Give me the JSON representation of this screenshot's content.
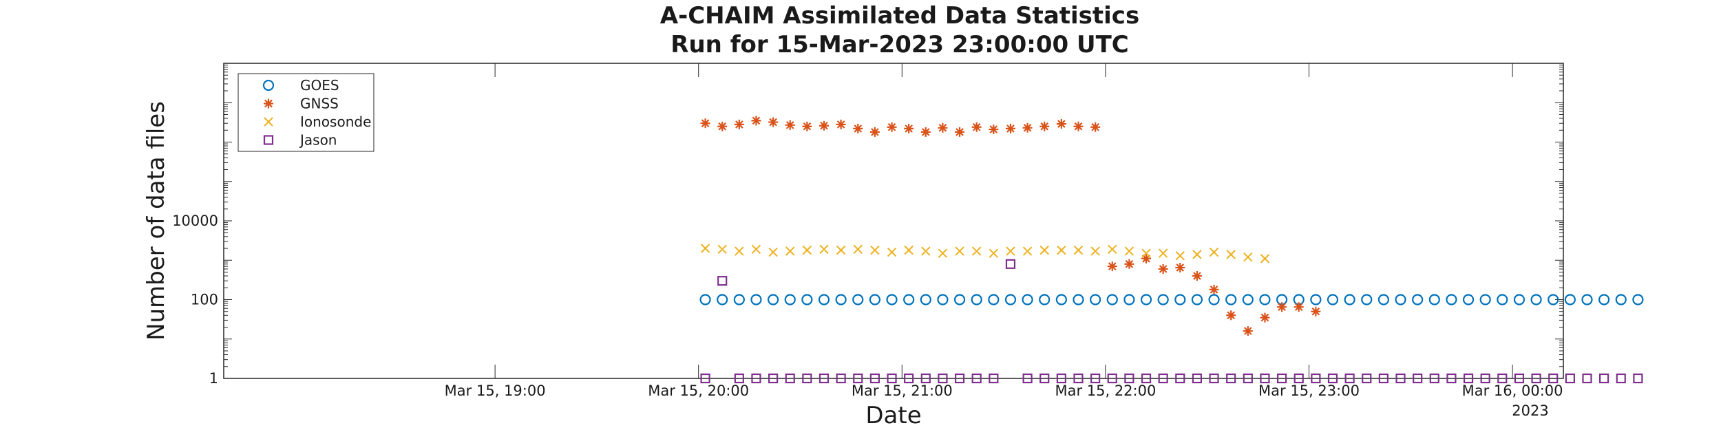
{
  "chart_data": {
    "type": "scatter",
    "title": "A-CHAIM Assimilated Data Statistics",
    "subtitle": "Run for 15-Mar-2023 23:00:00 UTC",
    "xlabel": "Date",
    "ylabel": "Number of data files",
    "x_year_label": "2023",
    "x_unit": "minutes after Mar 15, 18:00 UTC",
    "xlim": [
      -20,
      375
    ],
    "ylim": [
      1,
      100000000
    ],
    "y_scale": "log",
    "x_ticks": [
      {
        "x": 60,
        "label": "Mar 15, 19:00"
      },
      {
        "x": 120,
        "label": "Mar 15, 20:00"
      },
      {
        "x": 180,
        "label": "Mar 15, 21:00"
      },
      {
        "x": 240,
        "label": "Mar 15, 22:00"
      },
      {
        "x": 300,
        "label": "Mar 15, 23:00"
      },
      {
        "x": 360,
        "label": "Mar 16, 00:00"
      }
    ],
    "y_ticks": [
      {
        "y": 1,
        "label": "1"
      },
      {
        "y": 100,
        "label": "100"
      },
      {
        "y": 10000,
        "label": "10000"
      }
    ],
    "grid": false,
    "legend_position": "top-left",
    "series": [
      {
        "name": "GOES",
        "marker": "circle",
        "color": "#0072BD",
        "x": [
          122,
          127,
          132,
          137,
          142,
          147,
          152,
          157,
          162,
          167,
          172,
          177,
          182,
          187,
          192,
          197,
          202,
          207,
          212,
          217,
          222,
          227,
          232,
          237,
          242,
          247,
          252,
          257,
          262,
          267,
          272,
          277,
          282,
          287,
          292,
          297,
          302,
          307,
          312,
          317,
          322,
          327,
          332,
          337,
          342,
          347,
          352,
          357,
          362,
          367,
          372,
          377,
          382,
          387,
          392,
          397
        ],
        "y": [
          100,
          100,
          100,
          100,
          100,
          100,
          100,
          100,
          100,
          100,
          100,
          100,
          100,
          100,
          100,
          100,
          100,
          100,
          100,
          100,
          100,
          100,
          100,
          100,
          100,
          100,
          100,
          100,
          100,
          100,
          100,
          100,
          100,
          100,
          100,
          100,
          100,
          100,
          100,
          100,
          100,
          100,
          100,
          100,
          100,
          100,
          100,
          100,
          100,
          100,
          100,
          100,
          100,
          100,
          100,
          100
        ]
      },
      {
        "name": "GNSS",
        "marker": "star",
        "color": "#D95319",
        "x": [
          122,
          127,
          132,
          137,
          142,
          147,
          152,
          157,
          162,
          167,
          172,
          177,
          182,
          187,
          192,
          197,
          202,
          207,
          212,
          217,
          222,
          227,
          232,
          237,
          242,
          247,
          252,
          257,
          262,
          267,
          272,
          277,
          282,
          287,
          292,
          297,
          302
        ],
        "y": [
          3000000,
          2500000,
          2800000,
          3500000,
          3200000,
          2700000,
          2500000,
          2600000,
          2800000,
          2200000,
          1800000,
          2400000,
          2200000,
          1800000,
          2300000,
          1800000,
          2400000,
          2100000,
          2200000,
          2300000,
          2500000,
          2900000,
          2500000,
          2400000,
          700,
          800,
          1100,
          600,
          650,
          400,
          180,
          40,
          16,
          35,
          65,
          65,
          50
        ]
      },
      {
        "name": "Ionosonde",
        "marker": "x",
        "color": "#EDB120",
        "x": [
          122,
          127,
          132,
          137,
          142,
          147,
          152,
          157,
          162,
          167,
          172,
          177,
          182,
          187,
          192,
          197,
          202,
          207,
          212,
          217,
          222,
          227,
          232,
          237,
          242,
          247,
          252,
          257,
          262,
          267,
          272,
          277,
          282,
          287
        ],
        "y": [
          2000,
          1900,
          1700,
          1900,
          1600,
          1700,
          1800,
          1900,
          1800,
          1900,
          1800,
          1600,
          1800,
          1700,
          1500,
          1700,
          1700,
          1500,
          1700,
          1700,
          1800,
          1800,
          1800,
          1700,
          1900,
          1700,
          1500,
          1500,
          1300,
          1400,
          1600,
          1400,
          1200,
          1100
        ]
      },
      {
        "name": "Jason",
        "marker": "square",
        "color": "#7E2F8E",
        "x": [
          122,
          127,
          132,
          137,
          142,
          147,
          152,
          157,
          162,
          167,
          172,
          177,
          182,
          187,
          192,
          197,
          202,
          207,
          212,
          217,
          222,
          227,
          232,
          237,
          242,
          247,
          252,
          257,
          262,
          267,
          272,
          277,
          282,
          287,
          292,
          297,
          302,
          307,
          312,
          317,
          322,
          327,
          332,
          337,
          342,
          347,
          352,
          357,
          362,
          367,
          372,
          377,
          382,
          387,
          392,
          397
        ],
        "y": [
          1,
          300,
          1,
          1,
          1,
          1,
          1,
          1,
          1,
          1,
          1,
          1,
          1,
          1,
          1,
          1,
          1,
          1,
          800,
          1,
          1,
          1,
          1,
          1,
          1,
          1,
          1,
          1,
          1,
          1,
          1,
          1,
          1,
          1,
          1,
          1,
          1,
          1,
          1,
          1,
          1,
          1,
          1,
          1,
          1,
          1,
          1,
          1,
          1,
          1,
          1,
          1,
          1,
          1,
          1,
          1
        ]
      }
    ]
  }
}
